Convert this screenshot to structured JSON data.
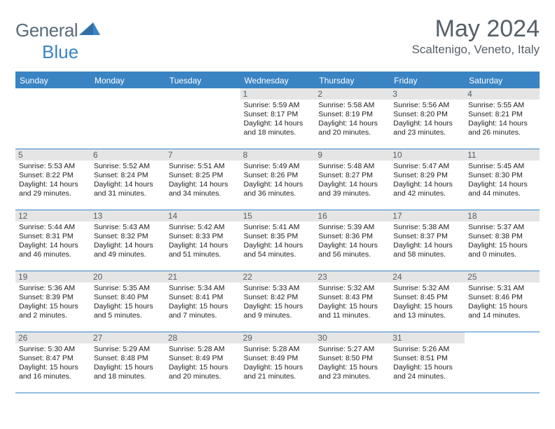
{
  "brand": {
    "part1": "General",
    "part2": "Blue"
  },
  "title": "May 2024",
  "location": "Scaltenigo, Veneto, Italy",
  "colors": {
    "accent": "#3a84c4",
    "header_text": "#ffffff",
    "daynum_bg": "#e5e5e5",
    "text": "#222222",
    "title_color": "#565f68"
  },
  "day_names": [
    "Sunday",
    "Monday",
    "Tuesday",
    "Wednesday",
    "Thursday",
    "Friday",
    "Saturday"
  ],
  "weeks": [
    [
      {
        "n": "",
        "sr": "",
        "ss": "",
        "dl": ""
      },
      {
        "n": "",
        "sr": "",
        "ss": "",
        "dl": ""
      },
      {
        "n": "",
        "sr": "",
        "ss": "",
        "dl": ""
      },
      {
        "n": "1",
        "sr": "5:59 AM",
        "ss": "8:17 PM",
        "dl": "14 hours and 18 minutes."
      },
      {
        "n": "2",
        "sr": "5:58 AM",
        "ss": "8:19 PM",
        "dl": "14 hours and 20 minutes."
      },
      {
        "n": "3",
        "sr": "5:56 AM",
        "ss": "8:20 PM",
        "dl": "14 hours and 23 minutes."
      },
      {
        "n": "4",
        "sr": "5:55 AM",
        "ss": "8:21 PM",
        "dl": "14 hours and 26 minutes."
      }
    ],
    [
      {
        "n": "5",
        "sr": "5:53 AM",
        "ss": "8:22 PM",
        "dl": "14 hours and 29 minutes."
      },
      {
        "n": "6",
        "sr": "5:52 AM",
        "ss": "8:24 PM",
        "dl": "14 hours and 31 minutes."
      },
      {
        "n": "7",
        "sr": "5:51 AM",
        "ss": "8:25 PM",
        "dl": "14 hours and 34 minutes."
      },
      {
        "n": "8",
        "sr": "5:49 AM",
        "ss": "8:26 PM",
        "dl": "14 hours and 36 minutes."
      },
      {
        "n": "9",
        "sr": "5:48 AM",
        "ss": "8:27 PM",
        "dl": "14 hours and 39 minutes."
      },
      {
        "n": "10",
        "sr": "5:47 AM",
        "ss": "8:29 PM",
        "dl": "14 hours and 42 minutes."
      },
      {
        "n": "11",
        "sr": "5:45 AM",
        "ss": "8:30 PM",
        "dl": "14 hours and 44 minutes."
      }
    ],
    [
      {
        "n": "12",
        "sr": "5:44 AM",
        "ss": "8:31 PM",
        "dl": "14 hours and 46 minutes."
      },
      {
        "n": "13",
        "sr": "5:43 AM",
        "ss": "8:32 PM",
        "dl": "14 hours and 49 minutes."
      },
      {
        "n": "14",
        "sr": "5:42 AM",
        "ss": "8:33 PM",
        "dl": "14 hours and 51 minutes."
      },
      {
        "n": "15",
        "sr": "5:41 AM",
        "ss": "8:35 PM",
        "dl": "14 hours and 54 minutes."
      },
      {
        "n": "16",
        "sr": "5:39 AM",
        "ss": "8:36 PM",
        "dl": "14 hours and 56 minutes."
      },
      {
        "n": "17",
        "sr": "5:38 AM",
        "ss": "8:37 PM",
        "dl": "14 hours and 58 minutes."
      },
      {
        "n": "18",
        "sr": "5:37 AM",
        "ss": "8:38 PM",
        "dl": "15 hours and 0 minutes."
      }
    ],
    [
      {
        "n": "19",
        "sr": "5:36 AM",
        "ss": "8:39 PM",
        "dl": "15 hours and 2 minutes."
      },
      {
        "n": "20",
        "sr": "5:35 AM",
        "ss": "8:40 PM",
        "dl": "15 hours and 5 minutes."
      },
      {
        "n": "21",
        "sr": "5:34 AM",
        "ss": "8:41 PM",
        "dl": "15 hours and 7 minutes."
      },
      {
        "n": "22",
        "sr": "5:33 AM",
        "ss": "8:42 PM",
        "dl": "15 hours and 9 minutes."
      },
      {
        "n": "23",
        "sr": "5:32 AM",
        "ss": "8:43 PM",
        "dl": "15 hours and 11 minutes."
      },
      {
        "n": "24",
        "sr": "5:32 AM",
        "ss": "8:45 PM",
        "dl": "15 hours and 13 minutes."
      },
      {
        "n": "25",
        "sr": "5:31 AM",
        "ss": "8:46 PM",
        "dl": "15 hours and 14 minutes."
      }
    ],
    [
      {
        "n": "26",
        "sr": "5:30 AM",
        "ss": "8:47 PM",
        "dl": "15 hours and 16 minutes."
      },
      {
        "n": "27",
        "sr": "5:29 AM",
        "ss": "8:48 PM",
        "dl": "15 hours and 18 minutes."
      },
      {
        "n": "28",
        "sr": "5:28 AM",
        "ss": "8:49 PM",
        "dl": "15 hours and 20 minutes."
      },
      {
        "n": "29",
        "sr": "5:28 AM",
        "ss": "8:49 PM",
        "dl": "15 hours and 21 minutes."
      },
      {
        "n": "30",
        "sr": "5:27 AM",
        "ss": "8:50 PM",
        "dl": "15 hours and 23 minutes."
      },
      {
        "n": "31",
        "sr": "5:26 AM",
        "ss": "8:51 PM",
        "dl": "15 hours and 24 minutes."
      },
      {
        "n": "",
        "sr": "",
        "ss": "",
        "dl": ""
      }
    ]
  ],
  "labels": {
    "sunrise": "Sunrise:",
    "sunset": "Sunset:",
    "daylight": "Daylight:"
  }
}
